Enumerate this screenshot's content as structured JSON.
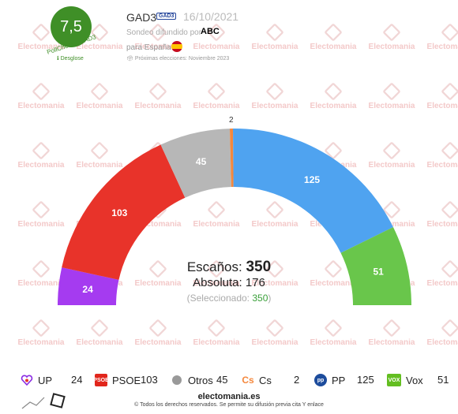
{
  "header": {
    "score": "7,5",
    "score_label": "PollCheck - GAD3",
    "breakdown_label": "Desglose",
    "pollster": "GAD3",
    "pollster_logo": "GAD3",
    "date": "16/10/2021",
    "diffused_by": "Sondeo difundido por",
    "media": "ABC",
    "scope": "para España",
    "next_elections": "Próximas elecciones: Noviembre 2023"
  },
  "watermark": "Electomania",
  "chart_data": {
    "type": "pie",
    "subtype": "parliament-hemicycle",
    "total": 350,
    "parties": [
      {
        "name": "UP",
        "seats": 24,
        "color": "#a53bf0"
      },
      {
        "name": "PSOE",
        "seats": 103,
        "color": "#e8332a"
      },
      {
        "name": "Otros",
        "seats": 45,
        "color": "#b7b7b7"
      },
      {
        "name": "Cs",
        "seats": 2,
        "color": "#f5883d"
      },
      {
        "name": "PP",
        "seats": 125,
        "color": "#4fa3f0"
      },
      {
        "name": "Vox",
        "seats": 51,
        "color": "#69c64b"
      }
    ]
  },
  "center": {
    "seats_label": "Escaños:",
    "seats_total": "350",
    "majority": "Absoluta: 176",
    "selected_label": "(Seleccionado: ",
    "selected_value": "350",
    "selected_close": ")"
  },
  "legend": [
    {
      "name": "UP",
      "value": "24",
      "icon": "heart-icon",
      "color": "#8a2be2"
    },
    {
      "name": "PSOE",
      "value": "103",
      "icon": "psoe-logo",
      "color": "#e1261c"
    },
    {
      "name": "Otros",
      "value": "45",
      "icon": "circle-icon",
      "color": "#999999"
    },
    {
      "name": "Cs",
      "value": "2",
      "icon": "cs-logo",
      "color": "#f5883d"
    },
    {
      "name": "PP",
      "value": "125",
      "icon": "pp-logo",
      "color": "#1d4c9c"
    },
    {
      "name": "Vox",
      "value": "51",
      "icon": "vox-logo",
      "color": "#63be21"
    }
  ],
  "footer": {
    "brand": "electomania.es",
    "rights": "© Todos los derechos reservados. Se permite su difusión previa cita Y enlace"
  }
}
